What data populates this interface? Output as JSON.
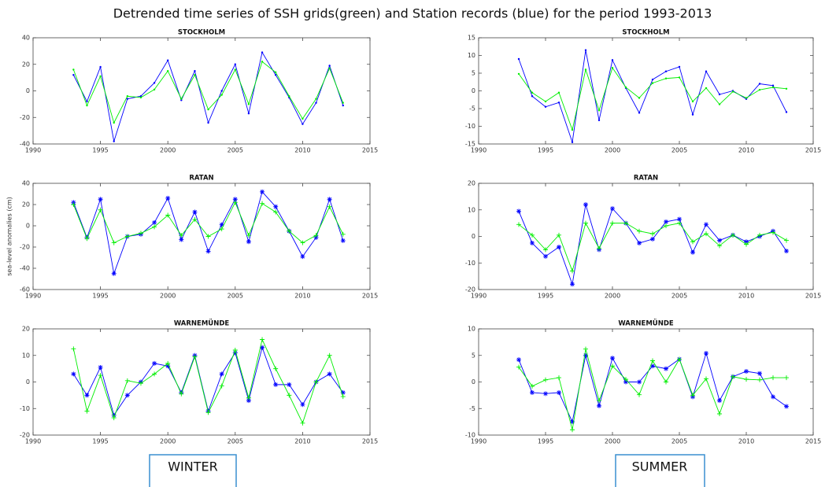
{
  "title": "Detrended time series of SSH grids(green) and Station records (blue) for the period 1993-2013",
  "seasons": [
    "WINTER",
    "SUMMER"
  ],
  "chart_data": [
    {
      "type": "line",
      "title": "STOCKHOLM",
      "x": [
        1993,
        1994,
        1995,
        1996,
        1997,
        1998,
        1999,
        2000,
        2001,
        2002,
        2003,
        2004,
        2005,
        2006,
        2007,
        2008,
        2009,
        2010,
        2011,
        2012,
        2013
      ],
      "xlim": [
        1990,
        2015
      ],
      "xticks": [
        1990,
        1995,
        2000,
        2005,
        2010,
        2015
      ],
      "ylim": [
        -40,
        40
      ],
      "yticks": [
        -40,
        -20,
        0,
        20,
        40
      ],
      "series": [
        {
          "color": "#0000ff",
          "marker": "dot",
          "values": [
            12,
            -8,
            18,
            -38,
            -6,
            -4,
            6,
            23,
            -7,
            15,
            -24,
            0,
            20,
            -17,
            29,
            12,
            -5,
            -25,
            -9,
            19,
            -11
          ]
        },
        {
          "color": "#00ee00",
          "marker": "dot",
          "values": [
            16,
            -11,
            11,
            -24,
            -4,
            -5,
            1,
            15,
            -6,
            12,
            -14,
            -3,
            16,
            -10,
            22,
            14,
            -4,
            -21,
            -6,
            17,
            -9
          ]
        }
      ]
    },
    {
      "type": "line",
      "title": "STOCKHOLM",
      "x": [
        1993,
        1994,
        1995,
        1996,
        1997,
        1998,
        1999,
        2000,
        2001,
        2002,
        2003,
        2004,
        2005,
        2006,
        2007,
        2008,
        2009,
        2010,
        2011,
        2012,
        2013
      ],
      "xlim": [
        1990,
        2015
      ],
      "xticks": [
        1990,
        1995,
        2000,
        2005,
        2010,
        2015
      ],
      "ylim": [
        -15,
        15
      ],
      "yticks": [
        -15,
        -10,
        -5,
        0,
        5,
        10,
        15
      ],
      "series": [
        {
          "color": "#0000ff",
          "marker": "dot",
          "values": [
            9,
            -1.5,
            -4.5,
            -3.3,
            -14.5,
            11.5,
            -8.3,
            8.7,
            0.8,
            -6.2,
            3.2,
            5.5,
            6.8,
            -6.7,
            5.5,
            -1,
            0,
            -2.3,
            2,
            1.5,
            -6
          ]
        },
        {
          "color": "#00ee00",
          "marker": "dot",
          "values": [
            4.8,
            -0.5,
            -3,
            -0.5,
            -11,
            6,
            -5.5,
            6.5,
            1,
            -2,
            2.2,
            3.5,
            3.8,
            -3,
            0.8,
            -3.8,
            -0.2,
            -2,
            0.3,
            1,
            0.6
          ]
        }
      ]
    },
    {
      "type": "line",
      "title": "RATAN",
      "ylabel": "sea-level anomalies (cm)",
      "x": [
        1993,
        1994,
        1995,
        1996,
        1997,
        1998,
        1999,
        2000,
        2001,
        2002,
        2003,
        2004,
        2005,
        2006,
        2007,
        2008,
        2009,
        2010,
        2011,
        2012,
        2013
      ],
      "xlim": [
        1990,
        2015
      ],
      "xticks": [
        1990,
        1995,
        2000,
        2005,
        2010,
        2015
      ],
      "ylim": [
        -60,
        40
      ],
      "yticks": [
        -60,
        -40,
        -20,
        0,
        20,
        40
      ],
      "series": [
        {
          "color": "#0000ff",
          "marker": "star",
          "values": [
            22,
            -11,
            25,
            -45,
            -10,
            -8,
            3,
            26,
            -13,
            13,
            -24,
            1,
            25,
            -15,
            32,
            18,
            -5,
            -29,
            -11,
            25,
            -14
          ]
        },
        {
          "color": "#00ee00",
          "marker": "plus",
          "values": [
            20,
            -12,
            15,
            -16,
            -10,
            -7,
            -1,
            10,
            -9,
            6,
            -10,
            -3,
            22,
            -9,
            21,
            13,
            -5,
            -16,
            -9,
            18,
            -8
          ]
        }
      ]
    },
    {
      "type": "line",
      "title": "RATAN",
      "x": [
        1993,
        1994,
        1995,
        1996,
        1997,
        1998,
        1999,
        2000,
        2001,
        2002,
        2003,
        2004,
        2005,
        2006,
        2007,
        2008,
        2009,
        2010,
        2011,
        2012,
        2013
      ],
      "xlim": [
        1990,
        2015
      ],
      "xticks": [
        1990,
        1995,
        2000,
        2005,
        2010,
        2015
      ],
      "ylim": [
        -20,
        20
      ],
      "yticks": [
        -20,
        -10,
        0,
        10,
        20
      ],
      "series": [
        {
          "color": "#0000ff",
          "marker": "star",
          "values": [
            9.5,
            -2.5,
            -7.5,
            -4,
            -18,
            12,
            -5,
            10.5,
            5,
            -2.5,
            -1,
            5.5,
            6.5,
            -6,
            4.5,
            -1.5,
            0.5,
            -2,
            0,
            2,
            -5.5
          ]
        },
        {
          "color": "#00ee00",
          "marker": "plus",
          "values": [
            4.5,
            0.5,
            -5,
            0.5,
            -13,
            5,
            -4.5,
            5,
            5,
            2,
            1,
            4,
            5,
            -2,
            1,
            -3.5,
            0.5,
            -3,
            0.5,
            1.5,
            -1.5
          ]
        }
      ]
    },
    {
      "type": "line",
      "title": "WARNEMÜNDE",
      "x": [
        1993,
        1994,
        1995,
        1996,
        1997,
        1998,
        1999,
        2000,
        2001,
        2002,
        2003,
        2004,
        2005,
        2006,
        2007,
        2008,
        2009,
        2010,
        2011,
        2012,
        2013
      ],
      "xlim": [
        1990,
        2015
      ],
      "xticks": [
        1990,
        1995,
        2000,
        2005,
        2010,
        2015
      ],
      "ylim": [
        -20,
        20
      ],
      "yticks": [
        -20,
        -10,
        0,
        10,
        20
      ],
      "series": [
        {
          "color": "#0000ff",
          "marker": "star",
          "values": [
            3,
            -5,
            5.5,
            -12.5,
            -5,
            0,
            7,
            6,
            -4,
            10,
            -11,
            3,
            11,
            -7,
            13,
            -1,
            -1,
            -8.5,
            0,
            3,
            -4
          ]
        },
        {
          "color": "#00ee00",
          "marker": "plus",
          "values": [
            12.5,
            -11,
            2.5,
            -13.5,
            0.5,
            -0.5,
            3,
            7,
            -4.5,
            9.5,
            -11.5,
            -1.5,
            12,
            -6,
            16,
            5,
            -5,
            -15.5,
            0,
            10,
            -5.5
          ]
        }
      ]
    },
    {
      "type": "line",
      "title": "WARNEMÜNDE",
      "x": [
        1993,
        1994,
        1995,
        1996,
        1997,
        1998,
        1999,
        2000,
        2001,
        2002,
        2003,
        2004,
        2005,
        2006,
        2007,
        2008,
        2009,
        2010,
        2011,
        2012,
        2013
      ],
      "xlim": [
        1990,
        2015
      ],
      "xticks": [
        1990,
        1995,
        2000,
        2005,
        2010,
        2015
      ],
      "ylim": [
        -10,
        10
      ],
      "yticks": [
        -10,
        -5,
        0,
        5,
        10
      ],
      "series": [
        {
          "color": "#0000ff",
          "marker": "star",
          "values": [
            4.2,
            -2,
            -2.2,
            -2,
            -7.5,
            5,
            -4.5,
            4.5,
            0,
            0,
            3,
            2.5,
            4.3,
            -2.8,
            5.4,
            -3.5,
            1,
            2,
            1.6,
            -2.8,
            -4.6
          ]
        },
        {
          "color": "#00ee00",
          "marker": "plus",
          "values": [
            2.8,
            -0.8,
            0.4,
            0.8,
            -9,
            6.2,
            -3.5,
            3,
            0.5,
            -2.4,
            4,
            0,
            4.3,
            -2.5,
            0.6,
            -6,
            1,
            0.5,
            0.4,
            0.8,
            0.8
          ]
        }
      ]
    }
  ]
}
